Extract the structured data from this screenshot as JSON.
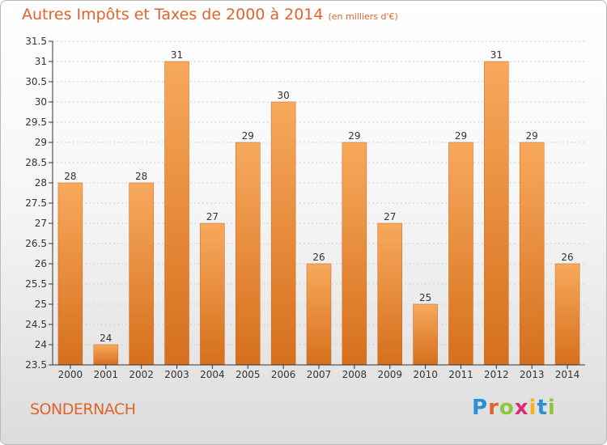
{
  "header": {
    "title": "Autres Impôts et Taxes de 2000 à 2014",
    "unit": "(en milliers d'€)"
  },
  "footer": {
    "location": "SONDERNACH",
    "brand": [
      "P",
      "r",
      "o",
      "x",
      "i",
      "t",
      "i"
    ],
    "brand_colors": [
      "#2b8fd6",
      "#e0642a",
      "#8cc63f",
      "#e02a6f",
      "#f5b21a",
      "#2b8fd6",
      "#8cc63f"
    ]
  },
  "colors": {
    "bar_top": "#f8a95c",
    "bar_bottom": "#d56f1c",
    "bar_edge": "#c8661a",
    "axis": "#333333",
    "grid": "#cfcfcf",
    "text": "#333333",
    "title": "#e0642a"
  },
  "chart_data": {
    "type": "bar",
    "categories": [
      "2000",
      "2001",
      "2002",
      "2003",
      "2004",
      "2005",
      "2006",
      "2007",
      "2008",
      "2009",
      "2010",
      "2011",
      "2012",
      "2013",
      "2014"
    ],
    "values": [
      28,
      24,
      28,
      31,
      27,
      29,
      30,
      26,
      29,
      27,
      25,
      29,
      31,
      29,
      26
    ],
    "data_labels": [
      "28",
      "24",
      "28",
      "31",
      "27",
      "29",
      "30",
      "26",
      "29",
      "27",
      "25",
      "29",
      "31",
      "29",
      "26"
    ],
    "ylim": [
      23.5,
      31.5
    ],
    "yticks": [
      23.5,
      24,
      24.5,
      25,
      25.5,
      26,
      26.5,
      27,
      27.5,
      28,
      28.5,
      29,
      29.5,
      30,
      30.5,
      31,
      31.5
    ],
    "ytick_labels": [
      "23.5",
      "24",
      "24.5",
      "25",
      "25.5",
      "26",
      "26.5",
      "27",
      "27.5",
      "28",
      "28.5",
      "29",
      "29.5",
      "30",
      "30.5",
      "31",
      "31.5"
    ],
    "grid": "horizontal",
    "xlabel": "",
    "ylabel": ""
  }
}
